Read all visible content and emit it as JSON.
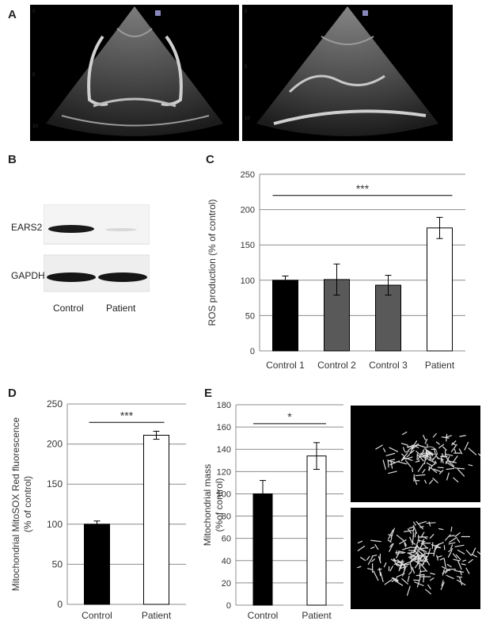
{
  "panels": {
    "A": "A",
    "B": "B",
    "C": "C",
    "D": "D",
    "E": "E"
  },
  "blot": {
    "rows": [
      "EARS2",
      "GAPDH"
    ],
    "columns": [
      "Control",
      "Patient"
    ]
  },
  "chart_data": [
    {
      "panel": "C",
      "type": "bar",
      "categories": [
        "Control 1",
        "Control 2",
        "Control 3",
        "Patient"
      ],
      "values": [
        100,
        101,
        93,
        174
      ],
      "errors": [
        6,
        22,
        14,
        15
      ],
      "bar_colors": [
        "#000000",
        "#595959",
        "#595959",
        "#ffffff"
      ],
      "ylabel": "ROS production (% of control)",
      "ylim": [
        0,
        250
      ],
      "yticks": [
        0,
        50,
        100,
        150,
        200,
        250
      ],
      "grid": true,
      "significance": "***"
    },
    {
      "panel": "D",
      "type": "bar",
      "categories": [
        "Control",
        "Patient"
      ],
      "values": [
        100,
        211
      ],
      "errors": [
        4,
        5
      ],
      "bar_colors": [
        "#000000",
        "#ffffff"
      ],
      "ylabel_lines": [
        "Mitochondrial MitoSOX Red fluorescence",
        "(% of control)"
      ],
      "ylim": [
        0,
        250
      ],
      "yticks": [
        0,
        50,
        100,
        150,
        200,
        250
      ],
      "grid": true,
      "significance": "***"
    },
    {
      "panel": "E",
      "type": "bar",
      "categories": [
        "Control",
        "Patient"
      ],
      "values": [
        100,
        134
      ],
      "errors": [
        12,
        12
      ],
      "bar_colors": [
        "#000000",
        "#ffffff"
      ],
      "ylabel_lines": [
        "Mitochondrial  mass",
        "(%of control)"
      ],
      "ylim": [
        0,
        180
      ],
      "yticks": [
        0,
        20,
        40,
        60,
        80,
        100,
        120,
        140,
        160,
        180
      ],
      "grid": true,
      "significance": "*"
    }
  ]
}
